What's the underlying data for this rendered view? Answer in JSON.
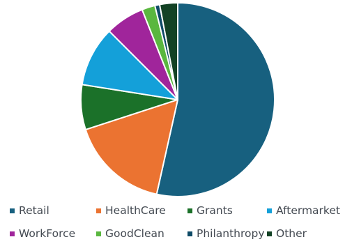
{
  "chart_data": {
    "type": "pie",
    "title": "",
    "start_angle_deg": 0,
    "direction": "clockwise",
    "legend_position": "bottom",
    "slices": [
      {
        "name": "Retail",
        "value": 53.5,
        "color": "#17607f"
      },
      {
        "name": "HealthCare",
        "value": 16.5,
        "color": "#eb7331"
      },
      {
        "name": "Grants",
        "value": 7.5,
        "color": "#1b7129"
      },
      {
        "name": "Aftermarket",
        "value": 10.0,
        "color": "#14a0d9"
      },
      {
        "name": "WorkForce",
        "value": 6.5,
        "color": "#a0259b"
      },
      {
        "name": "GoodClean",
        "value": 2.2,
        "color": "#5ab73f"
      },
      {
        "name": "Philanthropy",
        "value": 0.8,
        "color": "#0e4a66"
      },
      {
        "name": "Other",
        "value": 3.0,
        "color": "#134225"
      }
    ]
  }
}
